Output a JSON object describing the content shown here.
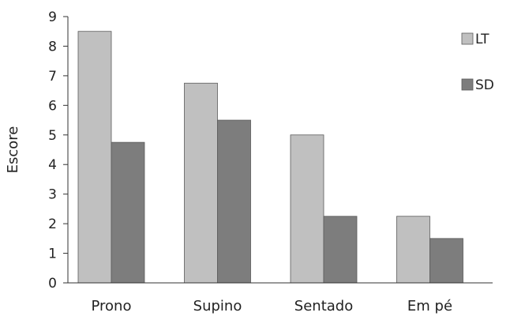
{
  "chart_data": {
    "type": "bar",
    "title": "",
    "xlabel": "",
    "ylabel": "Escore",
    "ylim": [
      0,
      9
    ],
    "yticks": [
      "0",
      "1",
      "2",
      "3",
      "4",
      "5",
      "6",
      "7",
      "8",
      "9"
    ],
    "grid": false,
    "legend_position": "top-right",
    "categories": [
      "Prono",
      "Supino",
      "Sentado",
      "Em pé"
    ],
    "series": [
      {
        "name": "LT",
        "color": "#c0c0c0",
        "values": [
          8.5,
          6.75,
          5.0,
          2.25
        ]
      },
      {
        "name": "SD",
        "color": "#7d7d7d",
        "values": [
          4.75,
          5.5,
          2.25,
          1.5
        ]
      }
    ]
  }
}
